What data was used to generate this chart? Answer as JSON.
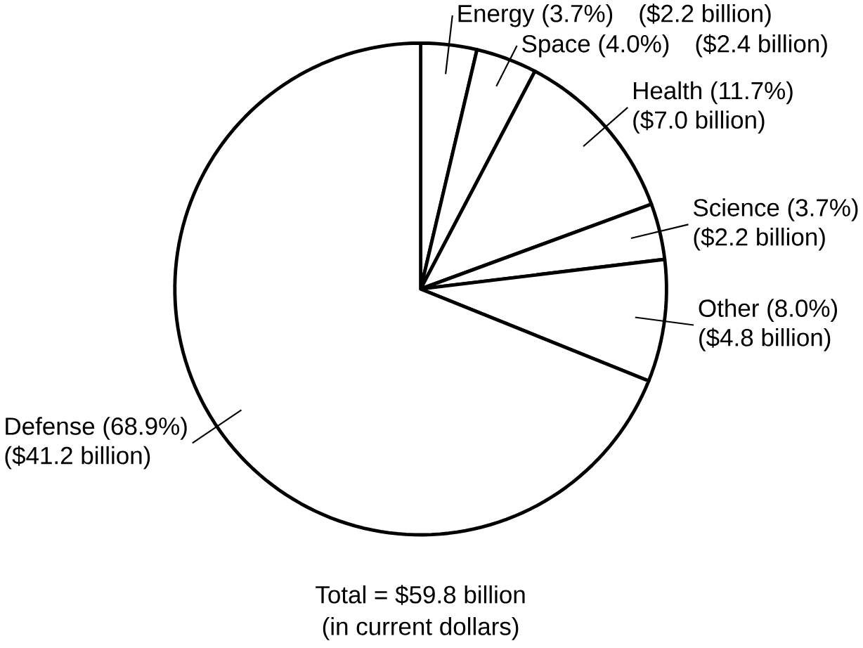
{
  "chart_data": {
    "type": "pie",
    "title": "Total = $59.8 billion",
    "subtitle": "(in current dollars)",
    "categories": [
      "Energy (3.7%)",
      "Space (4.0%)",
      "Health (11.7%)",
      "Science (3.7%)",
      "Other (8.0%)",
      "Defense (68.9%)"
    ],
    "values": [
      2.2,
      2.4,
      7.0,
      2.2,
      4.8,
      41.2
    ],
    "value_labels": [
      "($2.2 billion)",
      "($2.4 billion)",
      "($7.0 billion)",
      "($2.2 billion)",
      "($4.8 billion)",
      "($41.2 billion)"
    ],
    "colors": [
      "#ffffff",
      "#ffffff",
      "#ffffff",
      "#ffffff",
      "#ffffff",
      "#ffffff"
    ]
  }
}
